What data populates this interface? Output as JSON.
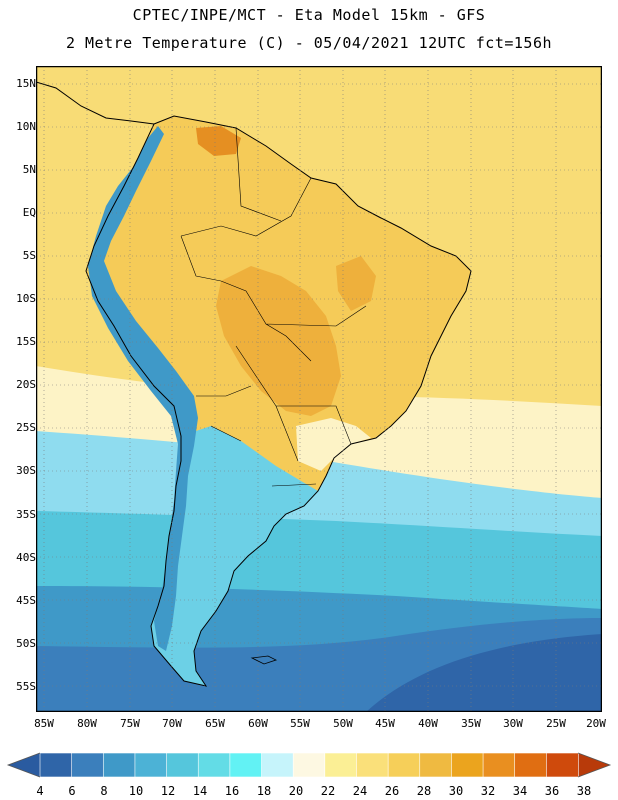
{
  "header": {
    "line1": "CPTEC/INPE/MCT -  Eta Model 15km - GFS",
    "line2": "2 Metre Temperature (C) - 05/04/2021 12UTC fct=156h"
  },
  "axes": {
    "lat_labels": [
      "15N",
      "10N",
      "5N",
      "EQ",
      "5S",
      "10S",
      "15S",
      "20S",
      "25S",
      "30S",
      "35S",
      "40S",
      "45S",
      "50S",
      "55S"
    ],
    "lon_labels": [
      "85W",
      "80W",
      "75W",
      "70W",
      "65W",
      "60W",
      "55W",
      "50W",
      "45W",
      "40W",
      "35W",
      "30W",
      "25W",
      "20W"
    ]
  },
  "colorbar": {
    "ticks": [
      "4",
      "6",
      "8",
      "10",
      "12",
      "14",
      "16",
      "18",
      "20",
      "22",
      "24",
      "26",
      "28",
      "30",
      "32",
      "34",
      "36",
      "38"
    ],
    "colors": [
      "#2f65a8",
      "#3b7fbc",
      "#3f99c8",
      "#4cb2d6",
      "#55c6dc",
      "#63dce6",
      "#62f2f4",
      "#c6f4fb",
      "#fdf8e2",
      "#fbef95",
      "#fae07a",
      "#f6cf59",
      "#efba41",
      "#eba41e",
      "#e98f20",
      "#e06e12",
      "#cf4a0c"
    ],
    "left_arrow_color": "#2a5ba0",
    "right_arrow_color": "#b83a0a"
  },
  "map_colors": {
    "warm_bg": "#f8dc76",
    "warm_land": "#f5cb58",
    "hot": "#eeb03c",
    "hottest": "#e58f22",
    "mild": "#fdf3c6",
    "andes": "#8fdcef",
    "south_land": "#6cd0e6",
    "ocean_cool": "#55c6dc",
    "ocean_cold": "#3f99c8",
    "ocean_colder": "#3b7fbc",
    "ocean_coldest": "#2f65a8",
    "outline": "#000000"
  }
}
